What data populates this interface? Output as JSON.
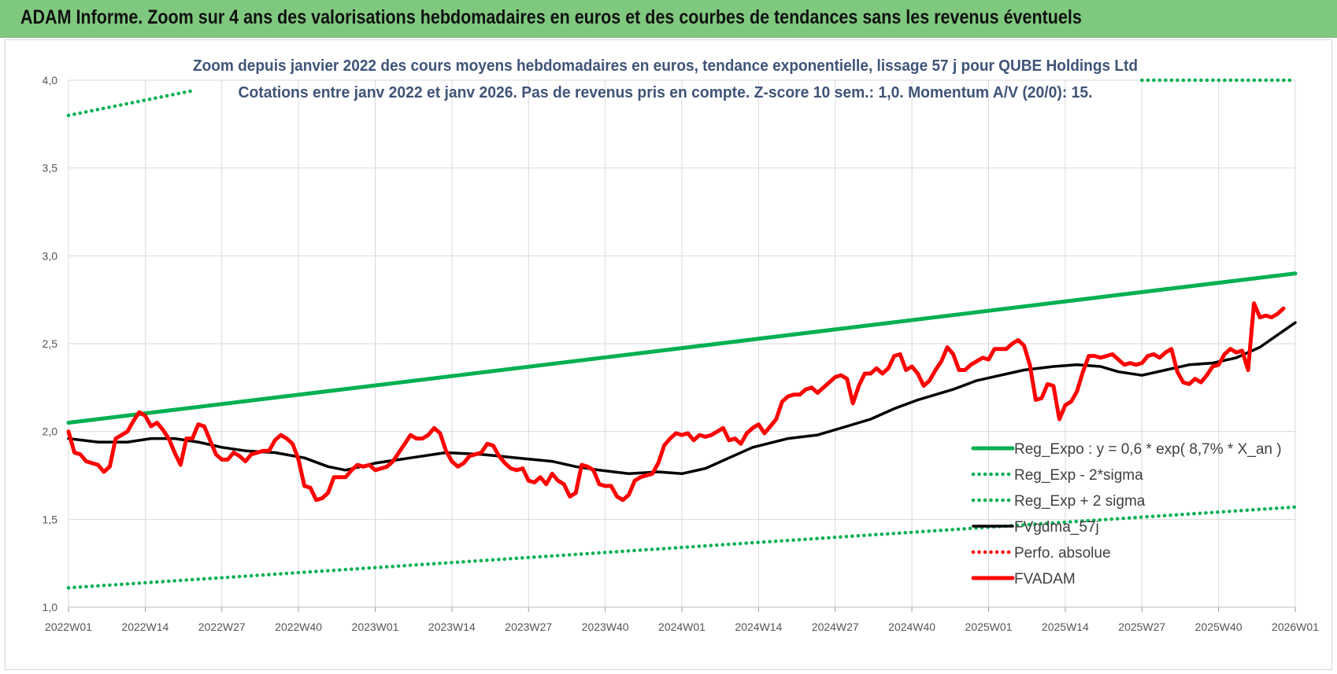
{
  "banner": {
    "title": "ADAM Informe. Zoom sur 4 ans des valorisations hebdomadaires en euros et des courbes de tendances sans les revenus éventuels"
  },
  "chart_data": {
    "type": "line",
    "subtitle_line1": "Zoom depuis janvier 2022 des cours moyens hebdomadaires en euros, tendance exponentielle, lissage 57 j pour QUBE Holdings Ltd",
    "subtitle_line2": "Cotations entre janv 2022 et janv 2026. Pas de revenus pris en compte. Z-score 10 sem.: 1,0. Momentum A/V (20/0): 15.",
    "ylim": [
      1.0,
      4.0
    ],
    "y_ticks": [
      "1,0",
      "1,5",
      "2,0",
      "2,5",
      "3,0",
      "3,5",
      "4,0"
    ],
    "x_ticks": [
      "2022W01",
      "2022W14",
      "2022W27",
      "2022W40",
      "2023W01",
      "2023W14",
      "2023W27",
      "2023W40",
      "2024W01",
      "2024W14",
      "2024W27",
      "2024W40",
      "2025W01",
      "2025W14",
      "2025W27",
      "2025W40",
      "2026W01"
    ],
    "grid": true,
    "legend_position": "bottom-right",
    "colors": {
      "green": "#00b050",
      "black": "#000000",
      "red": "#ff0000"
    },
    "series": [
      {
        "name": "Reg_Expo : y = 0,6 * exp( 8,7% *  X_an )",
        "style": "solid",
        "color": "#00b050",
        "points": [
          [
            0,
            2.05
          ],
          [
            208,
            2.9
          ]
        ]
      },
      {
        "name": "Reg_Exp - 2*sigma",
        "style": "dotted",
        "color": "#00b050",
        "points": [
          [
            0,
            1.11
          ],
          [
            208,
            1.57
          ]
        ]
      },
      {
        "name": "Reg_Exp + 2 sigma",
        "style": "dotted",
        "color": "#00b050",
        "points": [
          [
            0,
            3.8
          ],
          [
            21,
            3.94
          ]
        ],
        "points_2": [
          [
            182,
            4.0
          ],
          [
            208,
            4.0
          ]
        ]
      },
      {
        "name": "FVgdma_57j",
        "style": "solid",
        "color": "#000000",
        "points": [
          [
            0,
            1.96
          ],
          [
            5,
            1.94
          ],
          [
            10,
            1.94
          ],
          [
            14,
            1.96
          ],
          [
            18,
            1.96
          ],
          [
            22,
            1.94
          ],
          [
            26,
            1.91
          ],
          [
            30,
            1.89
          ],
          [
            35,
            1.88
          ],
          [
            40,
            1.85
          ],
          [
            44,
            1.8
          ],
          [
            47,
            1.78
          ],
          [
            52,
            1.82
          ],
          [
            58,
            1.85
          ],
          [
            64,
            1.88
          ],
          [
            70,
            1.87
          ],
          [
            76,
            1.85
          ],
          [
            82,
            1.83
          ],
          [
            86,
            1.8
          ],
          [
            90,
            1.78
          ],
          [
            95,
            1.76
          ],
          [
            100,
            1.77
          ],
          [
            104,
            1.76
          ],
          [
            108,
            1.79
          ],
          [
            112,
            1.85
          ],
          [
            116,
            1.91
          ],
          [
            122,
            1.96
          ],
          [
            127,
            1.98
          ],
          [
            132,
            2.03
          ],
          [
            136,
            2.07
          ],
          [
            140,
            2.13
          ],
          [
            144,
            2.18
          ],
          [
            150,
            2.24
          ],
          [
            154,
            2.29
          ],
          [
            158,
            2.32
          ],
          [
            162,
            2.35
          ],
          [
            167,
            2.37
          ],
          [
            171,
            2.38
          ],
          [
            175,
            2.37
          ],
          [
            178,
            2.34
          ],
          [
            182,
            2.32
          ],
          [
            186,
            2.35
          ],
          [
            190,
            2.38
          ],
          [
            194,
            2.39
          ],
          [
            198,
            2.42
          ],
          [
            202,
            2.48
          ],
          [
            208,
            2.62
          ]
        ]
      },
      {
        "name": "Perfo. absolue",
        "style": "dotted",
        "color": "#ff0000",
        "points": []
      },
      {
        "name": "FVADAM",
        "style": "solid",
        "color": "#ff0000",
        "points": [
          [
            0,
            2.0
          ],
          [
            1,
            1.88
          ],
          [
            2,
            1.87
          ],
          [
            3,
            1.83
          ],
          [
            5,
            1.81
          ],
          [
            6,
            1.77
          ],
          [
            7,
            1.8
          ],
          [
            8,
            1.96
          ],
          [
            10,
            2.0
          ],
          [
            11,
            2.06
          ],
          [
            12,
            2.11
          ],
          [
            13,
            2.09
          ],
          [
            14,
            2.03
          ],
          [
            15,
            2.05
          ],
          [
            16,
            2.01
          ],
          [
            17,
            1.96
          ],
          [
            18,
            1.88
          ],
          [
            19,
            1.81
          ],
          [
            20,
            1.96
          ],
          [
            21,
            1.96
          ],
          [
            22,
            2.04
          ],
          [
            23,
            2.03
          ],
          [
            24,
            1.95
          ],
          [
            25,
            1.87
          ],
          [
            26,
            1.84
          ],
          [
            27,
            1.84
          ],
          [
            28,
            1.88
          ],
          [
            29,
            1.86
          ],
          [
            30,
            1.83
          ],
          [
            31,
            1.87
          ],
          [
            32,
            1.88
          ],
          [
            33,
            1.89
          ],
          [
            34,
            1.89
          ],
          [
            35,
            1.95
          ],
          [
            36,
            1.98
          ],
          [
            37,
            1.96
          ],
          [
            38,
            1.93
          ],
          [
            39,
            1.84
          ],
          [
            40,
            1.69
          ],
          [
            41,
            1.68
          ],
          [
            42,
            1.61
          ],
          [
            43,
            1.62
          ],
          [
            44,
            1.65
          ],
          [
            45,
            1.74
          ],
          [
            46,
            1.74
          ],
          [
            47,
            1.74
          ],
          [
            48,
            1.78
          ],
          [
            49,
            1.81
          ],
          [
            50,
            1.8
          ],
          [
            51,
            1.81
          ],
          [
            52,
            1.78
          ],
          [
            53,
            1.79
          ],
          [
            54,
            1.8
          ],
          [
            55,
            1.83
          ],
          [
            56,
            1.88
          ],
          [
            57,
            1.93
          ],
          [
            58,
            1.98
          ],
          [
            59,
            1.96
          ],
          [
            60,
            1.96
          ],
          [
            61,
            1.98
          ],
          [
            62,
            2.02
          ],
          [
            63,
            1.99
          ],
          [
            64,
            1.89
          ],
          [
            65,
            1.83
          ],
          [
            66,
            1.8
          ],
          [
            67,
            1.82
          ],
          [
            68,
            1.86
          ],
          [
            69,
            1.87
          ],
          [
            70,
            1.88
          ],
          [
            71,
            1.93
          ],
          [
            72,
            1.92
          ],
          [
            73,
            1.86
          ],
          [
            74,
            1.82
          ],
          [
            75,
            1.79
          ],
          [
            76,
            1.78
          ],
          [
            77,
            1.79
          ],
          [
            78,
            1.72
          ],
          [
            79,
            1.71
          ],
          [
            80,
            1.74
          ],
          [
            81,
            1.7
          ],
          [
            82,
            1.76
          ],
          [
            83,
            1.72
          ],
          [
            84,
            1.7
          ],
          [
            85,
            1.63
          ],
          [
            86,
            1.65
          ],
          [
            87,
            1.81
          ],
          [
            88,
            1.8
          ],
          [
            89,
            1.78
          ],
          [
            90,
            1.7
          ],
          [
            91,
            1.69
          ],
          [
            92,
            1.69
          ],
          [
            93,
            1.63
          ],
          [
            94,
            1.61
          ],
          [
            95,
            1.64
          ],
          [
            96,
            1.72
          ],
          [
            97,
            1.74
          ],
          [
            98,
            1.75
          ],
          [
            99,
            1.76
          ],
          [
            100,
            1.82
          ],
          [
            101,
            1.92
          ],
          [
            102,
            1.96
          ],
          [
            103,
            1.99
          ],
          [
            104,
            1.98
          ],
          [
            105,
            1.99
          ],
          [
            106,
            1.95
          ],
          [
            107,
            1.98
          ],
          [
            108,
            1.97
          ],
          [
            109,
            1.98
          ],
          [
            110,
            2.0
          ],
          [
            111,
            2.02
          ],
          [
            112,
            1.95
          ],
          [
            113,
            1.96
          ],
          [
            114,
            1.93
          ],
          [
            115,
            1.99
          ],
          [
            116,
            2.02
          ],
          [
            117,
            2.04
          ],
          [
            118,
            1.99
          ],
          [
            119,
            2.03
          ],
          [
            120,
            2.07
          ],
          [
            121,
            2.17
          ],
          [
            122,
            2.2
          ],
          [
            123,
            2.21
          ],
          [
            124,
            2.21
          ],
          [
            125,
            2.24
          ],
          [
            126,
            2.25
          ],
          [
            127,
            2.22
          ],
          [
            128,
            2.25
          ],
          [
            129,
            2.28
          ],
          [
            130,
            2.31
          ],
          [
            131,
            2.32
          ],
          [
            132,
            2.3
          ],
          [
            133,
            2.16
          ],
          [
            134,
            2.26
          ],
          [
            135,
            2.33
          ],
          [
            136,
            2.33
          ],
          [
            137,
            2.36
          ],
          [
            138,
            2.33
          ],
          [
            139,
            2.36
          ],
          [
            140,
            2.43
          ],
          [
            141,
            2.44
          ],
          [
            142,
            2.35
          ],
          [
            143,
            2.37
          ],
          [
            144,
            2.33
          ],
          [
            145,
            2.26
          ],
          [
            146,
            2.29
          ],
          [
            147,
            2.35
          ],
          [
            148,
            2.4
          ],
          [
            149,
            2.48
          ],
          [
            150,
            2.44
          ],
          [
            151,
            2.35
          ],
          [
            152,
            2.35
          ],
          [
            153,
            2.38
          ],
          [
            154,
            2.4
          ],
          [
            155,
            2.42
          ],
          [
            156,
            2.41
          ],
          [
            157,
            2.47
          ],
          [
            158,
            2.47
          ],
          [
            159,
            2.47
          ],
          [
            160,
            2.5
          ],
          [
            161,
            2.52
          ],
          [
            162,
            2.49
          ],
          [
            163,
            2.38
          ],
          [
            164,
            2.18
          ],
          [
            165,
            2.19
          ],
          [
            166,
            2.27
          ],
          [
            167,
            2.26
          ],
          [
            168,
            2.07
          ],
          [
            169,
            2.15
          ],
          [
            170,
            2.17
          ],
          [
            171,
            2.23
          ],
          [
            172,
            2.34
          ],
          [
            173,
            2.43
          ],
          [
            174,
            2.43
          ],
          [
            175,
            2.42
          ],
          [
            176,
            2.43
          ],
          [
            177,
            2.44
          ],
          [
            178,
            2.41
          ],
          [
            179,
            2.38
          ],
          [
            180,
            2.39
          ],
          [
            181,
            2.38
          ],
          [
            182,
            2.39
          ],
          [
            183,
            2.43
          ],
          [
            184,
            2.44
          ],
          [
            185,
            2.42
          ],
          [
            186,
            2.45
          ],
          [
            187,
            2.47
          ],
          [
            188,
            2.34
          ],
          [
            189,
            2.28
          ],
          [
            190,
            2.27
          ],
          [
            191,
            2.3
          ],
          [
            192,
            2.28
          ],
          [
            193,
            2.32
          ],
          [
            194,
            2.37
          ],
          [
            195,
            2.38
          ],
          [
            196,
            2.44
          ],
          [
            197,
            2.47
          ],
          [
            198,
            2.45
          ],
          [
            199,
            2.46
          ],
          [
            200,
            2.35
          ],
          [
            201,
            2.73
          ],
          [
            202,
            2.65
          ],
          [
            203,
            2.66
          ],
          [
            204,
            2.65
          ],
          [
            205,
            2.67
          ],
          [
            206,
            2.7
          ]
        ]
      }
    ]
  }
}
